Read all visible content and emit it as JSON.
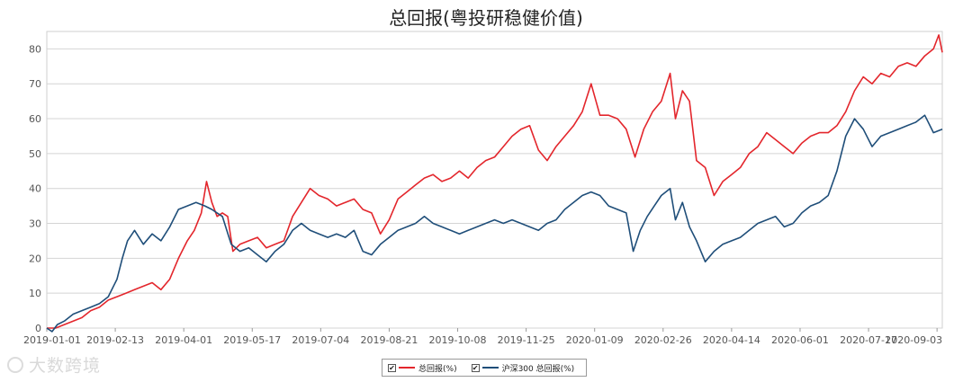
{
  "chart_data": {
    "type": "line",
    "title": "总回报(粤投研稳健价值)",
    "ylim": [
      0,
      85
    ],
    "yticks": [
      0,
      10,
      20,
      30,
      40,
      50,
      60,
      70,
      80
    ],
    "xlim": [
      0,
      51
    ],
    "xtick_labels": [
      "2019-01-01",
      "2019-02-13",
      "2019-04-01",
      "2019-05-17",
      "2019-07-04",
      "2019-08-21",
      "2019-10-08",
      "2019-11-25",
      "2020-01-09",
      "2020-02-26",
      "2020-04-14",
      "2020-06-01",
      "2020-07-17",
      "2020-09-03"
    ],
    "xtick_positions": [
      0,
      3.9,
      7.8,
      11.7,
      15.6,
      19.5,
      23.4,
      27.3,
      31.2,
      35.1,
      39.0,
      42.9,
      46.8,
      50.7
    ],
    "grid": true,
    "legend_position": "bottom-center",
    "series": [
      {
        "name": "总回报(%)",
        "color": "#e3262c",
        "points": [
          [
            0,
            0
          ],
          [
            0.5,
            0
          ],
          [
            1.0,
            1
          ],
          [
            1.5,
            2
          ],
          [
            2.0,
            3
          ],
          [
            2.5,
            5
          ],
          [
            3.0,
            6
          ],
          [
            3.5,
            8
          ],
          [
            4.0,
            9
          ],
          [
            4.5,
            10
          ],
          [
            5.0,
            11
          ],
          [
            5.5,
            12
          ],
          [
            6.0,
            13
          ],
          [
            6.5,
            11
          ],
          [
            7.0,
            14
          ],
          [
            7.5,
            20
          ],
          [
            8.0,
            25
          ],
          [
            8.4,
            28
          ],
          [
            8.8,
            33
          ],
          [
            9.1,
            42
          ],
          [
            9.4,
            36
          ],
          [
            9.7,
            32
          ],
          [
            10.0,
            33
          ],
          [
            10.3,
            32
          ],
          [
            10.6,
            22
          ],
          [
            11.0,
            24
          ],
          [
            11.5,
            25
          ],
          [
            12.0,
            26
          ],
          [
            12.5,
            23
          ],
          [
            13.0,
            24
          ],
          [
            13.5,
            25
          ],
          [
            14.0,
            32
          ],
          [
            14.5,
            36
          ],
          [
            15.0,
            40
          ],
          [
            15.5,
            38
          ],
          [
            16.0,
            37
          ],
          [
            16.5,
            35
          ],
          [
            17.0,
            36
          ],
          [
            17.5,
            37
          ],
          [
            18.0,
            34
          ],
          [
            18.5,
            33
          ],
          [
            19.0,
            27
          ],
          [
            19.5,
            31
          ],
          [
            20.0,
            37
          ],
          [
            20.5,
            39
          ],
          [
            21.0,
            41
          ],
          [
            21.5,
            43
          ],
          [
            22.0,
            44
          ],
          [
            22.5,
            42
          ],
          [
            23.0,
            43
          ],
          [
            23.5,
            45
          ],
          [
            24.0,
            43
          ],
          [
            24.5,
            46
          ],
          [
            25.0,
            48
          ],
          [
            25.5,
            49
          ],
          [
            26.0,
            52
          ],
          [
            26.5,
            55
          ],
          [
            27.0,
            57
          ],
          [
            27.5,
            58
          ],
          [
            28.0,
            51
          ],
          [
            28.5,
            48
          ],
          [
            29.0,
            52
          ],
          [
            29.5,
            55
          ],
          [
            30.0,
            58
          ],
          [
            30.5,
            62
          ],
          [
            31.0,
            70
          ],
          [
            31.5,
            61
          ],
          [
            32.0,
            61
          ],
          [
            32.5,
            60
          ],
          [
            33.0,
            57
          ],
          [
            33.5,
            49
          ],
          [
            34.0,
            57
          ],
          [
            34.5,
            62
          ],
          [
            35.0,
            65
          ],
          [
            35.5,
            73
          ],
          [
            35.8,
            60
          ],
          [
            36.2,
            68
          ],
          [
            36.6,
            65
          ],
          [
            37.0,
            48
          ],
          [
            37.5,
            46
          ],
          [
            38.0,
            38
          ],
          [
            38.5,
            42
          ],
          [
            39.0,
            44
          ],
          [
            39.5,
            46
          ],
          [
            40.0,
            50
          ],
          [
            40.5,
            52
          ],
          [
            41.0,
            56
          ],
          [
            41.5,
            54
          ],
          [
            42.0,
            52
          ],
          [
            42.5,
            50
          ],
          [
            43.0,
            53
          ],
          [
            43.5,
            55
          ],
          [
            44.0,
            56
          ],
          [
            44.5,
            56
          ],
          [
            45.0,
            58
          ],
          [
            45.5,
            62
          ],
          [
            46.0,
            68
          ],
          [
            46.5,
            72
          ],
          [
            47.0,
            70
          ],
          [
            47.5,
            73
          ],
          [
            48.0,
            72
          ],
          [
            48.5,
            75
          ],
          [
            49.0,
            76
          ],
          [
            49.5,
            75
          ],
          [
            50.0,
            78
          ],
          [
            50.5,
            80
          ],
          [
            50.8,
            84
          ],
          [
            51.0,
            79
          ]
        ]
      },
      {
        "name": "沪深300 总回报(%)",
        "color": "#1f4e79",
        "points": [
          [
            0,
            0
          ],
          [
            0.3,
            -1
          ],
          [
            0.6,
            1
          ],
          [
            1.0,
            2
          ],
          [
            1.5,
            4
          ],
          [
            2.0,
            5
          ],
          [
            2.5,
            6
          ],
          [
            3.0,
            7
          ],
          [
            3.5,
            9
          ],
          [
            4.0,
            14
          ],
          [
            4.3,
            20
          ],
          [
            4.6,
            25
          ],
          [
            5.0,
            28
          ],
          [
            5.5,
            24
          ],
          [
            6.0,
            27
          ],
          [
            6.5,
            25
          ],
          [
            7.0,
            29
          ],
          [
            7.5,
            34
          ],
          [
            8.0,
            35
          ],
          [
            8.5,
            36
          ],
          [
            9.0,
            35
          ],
          [
            9.4,
            34
          ],
          [
            9.7,
            33
          ],
          [
            10.0,
            32
          ],
          [
            10.5,
            24
          ],
          [
            11.0,
            22
          ],
          [
            11.5,
            23
          ],
          [
            12.0,
            21
          ],
          [
            12.5,
            19
          ],
          [
            13.0,
            22
          ],
          [
            13.5,
            24
          ],
          [
            14.0,
            28
          ],
          [
            14.5,
            30
          ],
          [
            15.0,
            28
          ],
          [
            15.5,
            27
          ],
          [
            16.0,
            26
          ],
          [
            16.5,
            27
          ],
          [
            17.0,
            26
          ],
          [
            17.5,
            28
          ],
          [
            18.0,
            22
          ],
          [
            18.5,
            21
          ],
          [
            19.0,
            24
          ],
          [
            19.5,
            26
          ],
          [
            20.0,
            28
          ],
          [
            20.5,
            29
          ],
          [
            21.0,
            30
          ],
          [
            21.5,
            32
          ],
          [
            22.0,
            30
          ],
          [
            22.5,
            29
          ],
          [
            23.0,
            28
          ],
          [
            23.5,
            27
          ],
          [
            24.0,
            28
          ],
          [
            24.5,
            29
          ],
          [
            25.0,
            30
          ],
          [
            25.5,
            31
          ],
          [
            26.0,
            30
          ],
          [
            26.5,
            31
          ],
          [
            27.0,
            30
          ],
          [
            27.5,
            29
          ],
          [
            28.0,
            28
          ],
          [
            28.5,
            30
          ],
          [
            29.0,
            31
          ],
          [
            29.5,
            34
          ],
          [
            30.0,
            36
          ],
          [
            30.5,
            38
          ],
          [
            31.0,
            39
          ],
          [
            31.5,
            38
          ],
          [
            32.0,
            35
          ],
          [
            32.5,
            34
          ],
          [
            33.0,
            33
          ],
          [
            33.4,
            22
          ],
          [
            33.8,
            28
          ],
          [
            34.2,
            32
          ],
          [
            34.6,
            35
          ],
          [
            35.0,
            38
          ],
          [
            35.5,
            40
          ],
          [
            35.8,
            31
          ],
          [
            36.2,
            36
          ],
          [
            36.6,
            29
          ],
          [
            37.0,
            25
          ],
          [
            37.5,
            19
          ],
          [
            38.0,
            22
          ],
          [
            38.5,
            24
          ],
          [
            39.0,
            25
          ],
          [
            39.5,
            26
          ],
          [
            40.0,
            28
          ],
          [
            40.5,
            30
          ],
          [
            41.0,
            31
          ],
          [
            41.5,
            32
          ],
          [
            42.0,
            29
          ],
          [
            42.5,
            30
          ],
          [
            43.0,
            33
          ],
          [
            43.5,
            35
          ],
          [
            44.0,
            36
          ],
          [
            44.5,
            38
          ],
          [
            45.0,
            45
          ],
          [
            45.5,
            55
          ],
          [
            46.0,
            60
          ],
          [
            46.5,
            57
          ],
          [
            47.0,
            52
          ],
          [
            47.5,
            55
          ],
          [
            48.0,
            56
          ],
          [
            48.5,
            57
          ],
          [
            49.0,
            58
          ],
          [
            49.5,
            59
          ],
          [
            50.0,
            61
          ],
          [
            50.5,
            56
          ],
          [
            51.0,
            57
          ]
        ]
      }
    ]
  },
  "legend": {
    "items": [
      {
        "label": "总回报(%)",
        "check": "✔",
        "color": "#e3262c"
      },
      {
        "label": "沪深300 总回报(%)",
        "check": "✔",
        "color": "#1f4e79"
      }
    ]
  },
  "watermark": {
    "text": "大数跨境"
  }
}
